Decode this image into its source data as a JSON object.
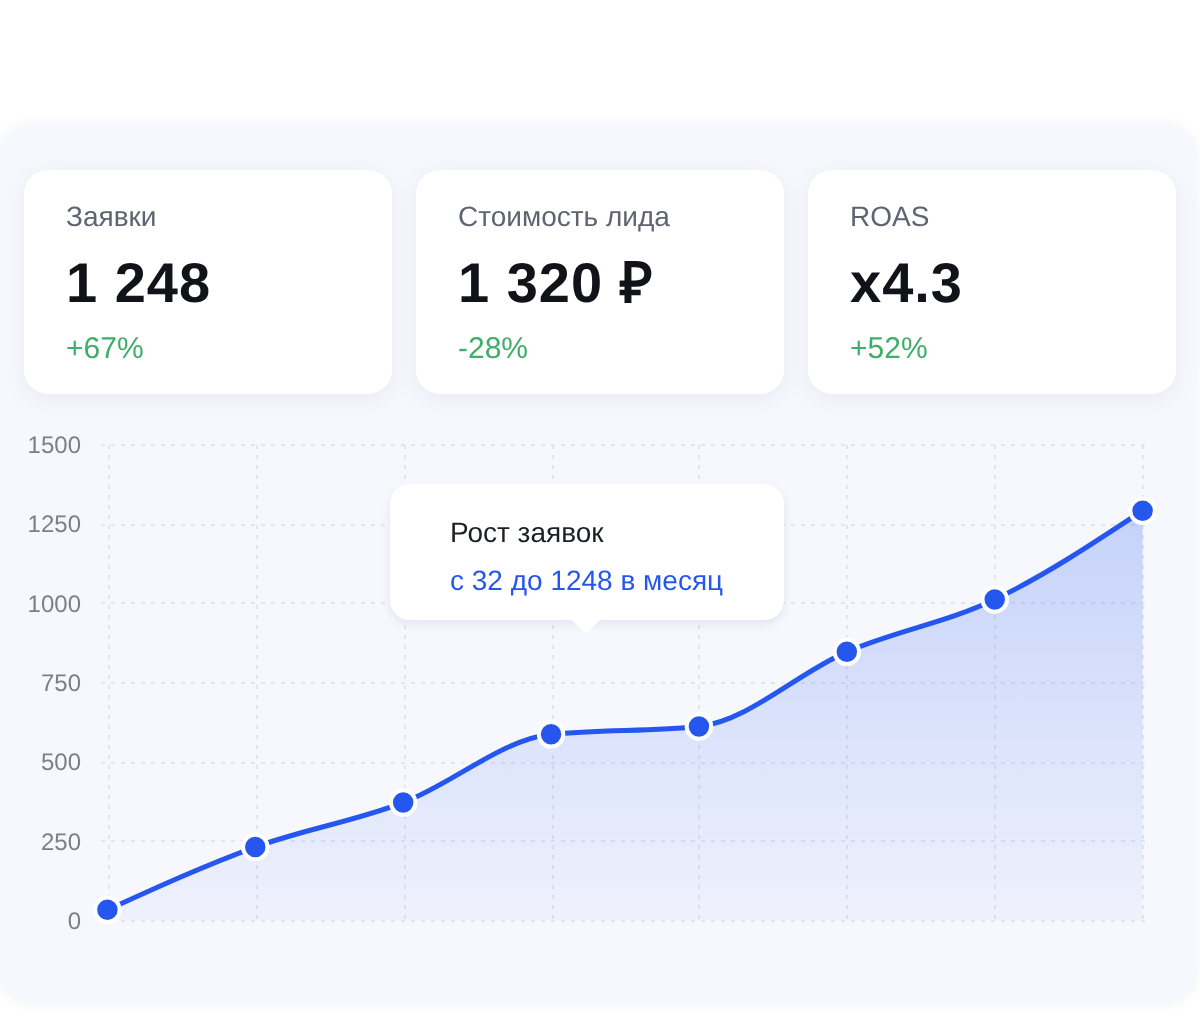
{
  "chart_data": [
    {
      "type": "other",
      "annotations": [
        "Заявки",
        "1 248",
        "+67%",
        "Стоимость лида",
        "1 320 ₽",
        "-28%",
        "ROAS",
        "x4.3",
        "+52%"
      ]
    },
    {
      "type": "area",
      "categories": [
        null,
        null,
        null,
        null,
        null,
        null,
        null,
        null
      ],
      "series": [
        {
          "color": "#2557ee",
          "values": [
            32,
            230,
            370,
            585,
            610,
            845,
            1010,
            1290
          ]
        }
      ],
      "ylim": [
        0,
        1500
      ],
      "yticks": [
        0,
        250,
        500,
        750,
        1000,
        1250,
        1500
      ],
      "grid": true,
      "marker": "circle",
      "annotations": [
        "Рост заявок",
        "с 32 до 1248 в месяц"
      ]
    }
  ]
}
